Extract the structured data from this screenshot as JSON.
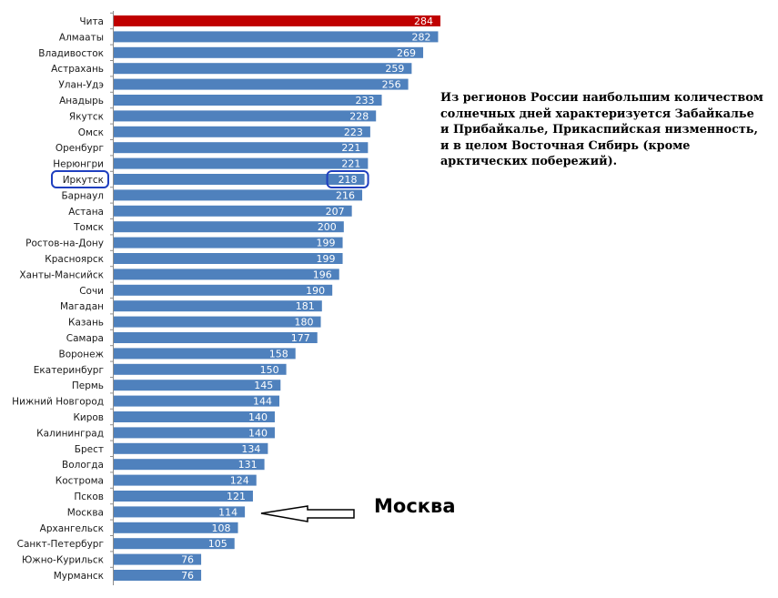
{
  "chart_data": {
    "type": "bar",
    "orientation": "horizontal",
    "categories": [
      "Чита",
      "Алмааты",
      "Владивосток",
      "Астрахань",
      "Улан-Удэ",
      "Анадырь",
      "Якутск",
      "Омск",
      "Оренбург",
      "Нерюнгри",
      "Иркутск",
      "Барнаул",
      "Астана",
      "Томск",
      "Ростов-на-Дону",
      "Красноярск",
      "Ханты-Мансийск",
      "Сочи",
      "Магадан",
      "Казань",
      "Самара",
      "Воронеж",
      "Екатеринбург",
      "Пермь",
      "Нижний Новгород",
      "Киров",
      "Калининград",
      "Брест",
      "Вологда",
      "Кострома",
      "Псков",
      "Москва",
      "Архангельск",
      "Санкт-Петербург",
      "Южно-Курильск",
      "Мурманск"
    ],
    "values": [
      284,
      282,
      269,
      259,
      256,
      233,
      228,
      223,
      221,
      221,
      218,
      216,
      207,
      200,
      199,
      199,
      196,
      190,
      181,
      180,
      177,
      158,
      150,
      145,
      144,
      140,
      140,
      134,
      131,
      124,
      121,
      114,
      108,
      105,
      76,
      76
    ],
    "highlight_index": 0,
    "circled_index": 10,
    "arrow_index": 31,
    "colors": {
      "bar": "#4f81bd",
      "highlight": "#c00000",
      "circle": "#1f3fbf"
    },
    "title": "",
    "xlabel": "",
    "ylabel": "",
    "xlim": [
      0,
      284
    ],
    "grid": false,
    "legend": "none"
  },
  "annotation": {
    "lines": [
      "Из регионов России наибольшим количеством",
      "солнечных дней характеризуется Забайкалье",
      "и Прибайкалье, Прикаспийская низменность,",
      "и в целом Восточная Сибирь (кроме",
      "арктических побережий)."
    ]
  },
  "callout": {
    "label": "Москва",
    "icon": "arrow-left-icon"
  }
}
